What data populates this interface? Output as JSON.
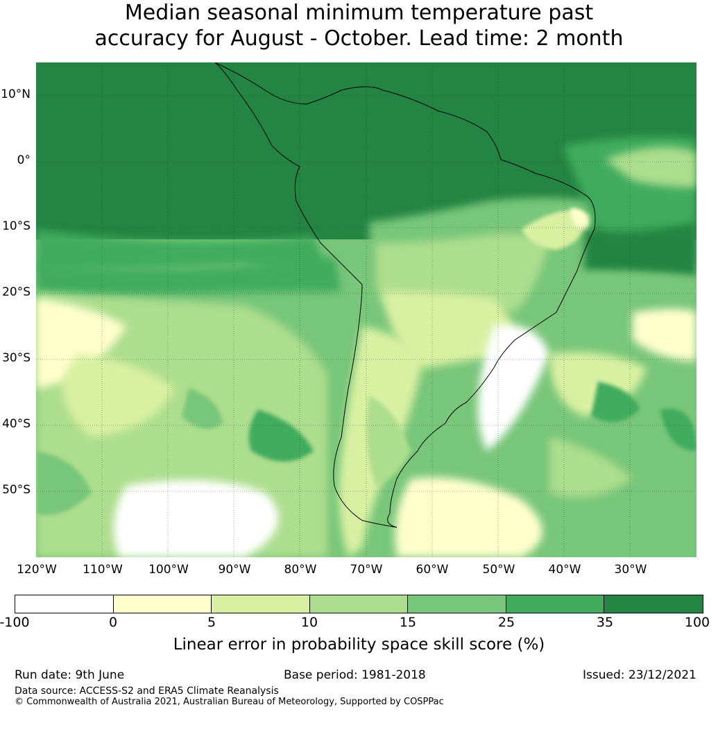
{
  "title_line1": "Median seasonal minimum temperature past",
  "title_line2": "accuracy for August - October. Lead time: 2 month",
  "lat_labels": [
    "10°N",
    "0°",
    "10°S",
    "20°S",
    "30°S",
    "40°S",
    "50°S"
  ],
  "lon_labels": [
    "120°W",
    "110°W",
    "100°W",
    "90°W",
    "80°W",
    "70°W",
    "60°W",
    "50°W",
    "40°W",
    "30°W"
  ],
  "colorbar": {
    "ticks": [
      "-100",
      "0",
      "5",
      "10",
      "15",
      "25",
      "35",
      "100"
    ],
    "colors": [
      "#ffffff",
      "#ffffcc",
      "#d9f0a3",
      "#addd8e",
      "#78c679",
      "#41ab5d",
      "#238443"
    ],
    "label": "Linear error in probability space skill score (%)"
  },
  "footer": {
    "run_date": "Run date: 9th June",
    "base_period": "Base period: 1981-2018",
    "issued": "Issued: 23/12/2021",
    "data_source": "Data source: ACCESS-S2 and ERA5 Climate Reanalysis",
    "copyright": "© Commonwealth of Australia 2021, Australian Bureau of Meteorology, Supported by COSPPac"
  }
}
